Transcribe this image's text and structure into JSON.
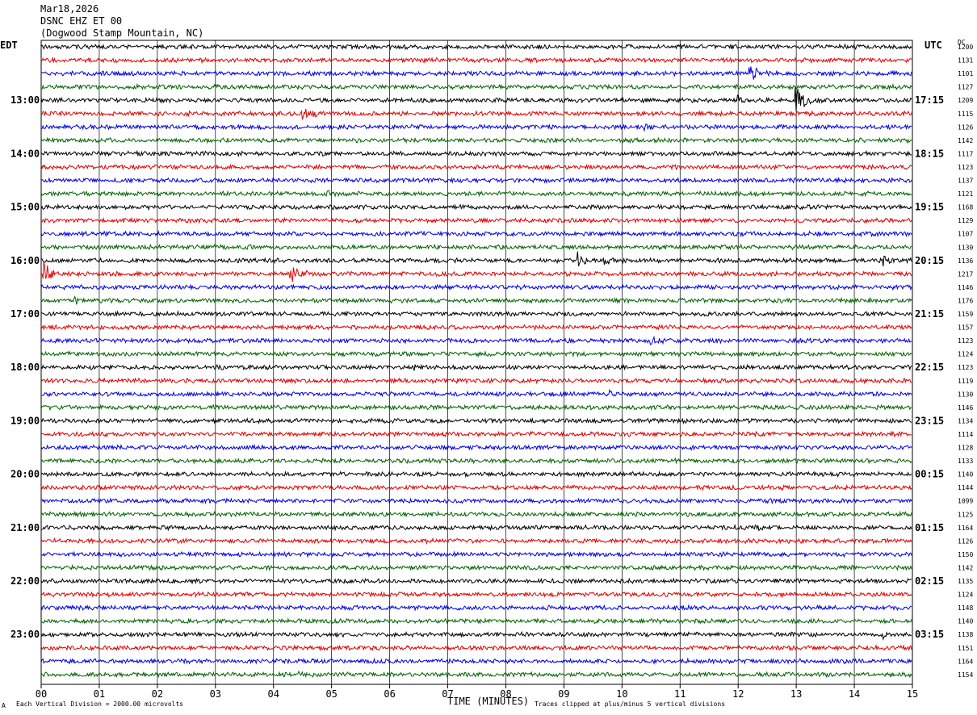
{
  "header": {
    "date": "Mar18,2026",
    "station": "DSNC EHZ ET 00",
    "location": "(Dogwood Stamp Mountain, NC)"
  },
  "labels": {
    "left_tz": "EDT",
    "right_tz": "UTC",
    "dc_header": "DC",
    "x_title": "TIME (MINUTES)",
    "scale_note": "Each Vertical Division = 2000.00 microvolts",
    "clip_note": "Traces clipped at plus/minus 5 vertical divisions",
    "corner_mark": "A"
  },
  "colors": {
    "trace_cycle": [
      "#000000",
      "#e00000",
      "#0000e0",
      "#006400"
    ],
    "grid": "#000000",
    "background": "#ffffff"
  },
  "chart_data": {
    "type": "line",
    "title": "DSNC EHZ ET 00",
    "xlabel": "TIME (MINUTES)",
    "xlim": [
      0,
      15
    ],
    "x_ticks": [
      "00",
      "01",
      "02",
      "03",
      "04",
      "05",
      "06",
      "07",
      "08",
      "09",
      "10",
      "11",
      "12",
      "13",
      "14",
      "15"
    ],
    "left_hour_labels": [
      {
        "row": 4,
        "label": "13:00"
      },
      {
        "row": 8,
        "label": "14:00"
      },
      {
        "row": 12,
        "label": "15:00"
      },
      {
        "row": 16,
        "label": "16:00"
      },
      {
        "row": 20,
        "label": "17:00"
      },
      {
        "row": 24,
        "label": "18:00"
      },
      {
        "row": 28,
        "label": "19:00"
      },
      {
        "row": 32,
        "label": "20:00"
      },
      {
        "row": 36,
        "label": "21:00"
      },
      {
        "row": 40,
        "label": "22:00"
      },
      {
        "row": 44,
        "label": "23:00"
      }
    ],
    "right_hour_labels": [
      {
        "row": 4,
        "label": "17:15"
      },
      {
        "row": 8,
        "label": "18:15"
      },
      {
        "row": 12,
        "label": "19:15"
      },
      {
        "row": 16,
        "label": "20:15"
      },
      {
        "row": 20,
        "label": "21:15"
      },
      {
        "row": 24,
        "label": "22:15"
      },
      {
        "row": 28,
        "label": "23:15"
      },
      {
        "row": 32,
        "label": "00:15"
      },
      {
        "row": 36,
        "label": "01:15"
      },
      {
        "row": 40,
        "label": "02:15"
      },
      {
        "row": 44,
        "label": "03:15"
      }
    ],
    "dc_offsets": [
      "1200",
      "1131",
      "1101",
      "1127",
      "1209",
      "1115",
      "1126",
      "1142",
      "1117",
      "1123",
      "1137",
      "1121",
      "1168",
      "1129",
      "1107",
      "1130",
      "1136",
      "1217",
      "1146",
      "1176",
      "1159",
      "1157",
      "1123",
      "1124",
      "1123",
      "1119",
      "1130",
      "1146",
      "1134",
      "1114",
      "1128",
      "1133",
      "1140",
      "1144",
      "1099",
      "1125",
      "1164",
      "1126",
      "1150",
      "1142",
      "1135",
      "1124",
      "1148",
      "1140",
      "1138",
      "1151",
      "1164",
      "1154"
    ],
    "events": [
      {
        "row": 2,
        "minute": 12.2,
        "amplitude": 12,
        "duration": 0.5
      },
      {
        "row": 4,
        "minute": 12.0,
        "amplitude": 8,
        "duration": 0.4
      },
      {
        "row": 4,
        "minute": 13.0,
        "amplitude": 17,
        "duration": 0.5
      },
      {
        "row": 5,
        "minute": 4.5,
        "amplitude": 8,
        "duration": 0.8
      },
      {
        "row": 5,
        "minute": 2.5,
        "amplitude": 4,
        "duration": 0.6
      },
      {
        "row": 6,
        "minute": 10.4,
        "amplitude": 5,
        "duration": 0.5
      },
      {
        "row": 11,
        "minute": 4.9,
        "amplitude": 5,
        "duration": 0.5
      },
      {
        "row": 16,
        "minute": 9.25,
        "amplitude": 12,
        "duration": 0.25
      },
      {
        "row": 16,
        "minute": 9.7,
        "amplitude": 8,
        "duration": 0.4
      },
      {
        "row": 16,
        "minute": 14.5,
        "amplitude": 8,
        "duration": 0.3
      },
      {
        "row": 17,
        "minute": 0.05,
        "amplitude": 16,
        "duration": 0.3
      },
      {
        "row": 17,
        "minute": 4.3,
        "amplitude": 14,
        "duration": 0.5
      },
      {
        "row": 19,
        "minute": 0.6,
        "amplitude": 8,
        "duration": 0.2
      },
      {
        "row": 22,
        "minute": 10.5,
        "amplitude": 5,
        "duration": 1.2
      },
      {
        "row": 24,
        "minute": 6.4,
        "amplitude": 5,
        "duration": 0.4
      },
      {
        "row": 26,
        "minute": 9.8,
        "amplitude": 5,
        "duration": 0.2
      },
      {
        "row": 36,
        "minute": 12.3,
        "amplitude": 5,
        "duration": 0.6
      },
      {
        "row": 44,
        "minute": 14.5,
        "amplitude": 6,
        "duration": 0.2
      },
      {
        "row": 47,
        "minute": 4.4,
        "amplitude": 5,
        "duration": 0.5
      }
    ]
  }
}
